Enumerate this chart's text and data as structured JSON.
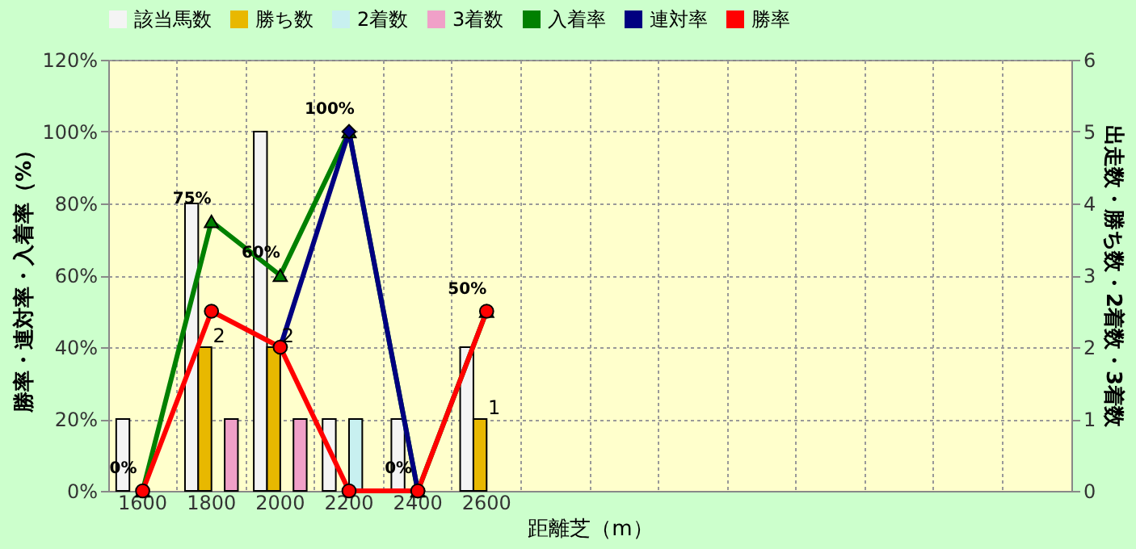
{
  "chart_data": {
    "type": "bar",
    "xlabel": "距離芝（m）",
    "ylabel": "勝率・連対率・入着率（%）",
    "y2label": "出走数・勝ち数・2着数・3着数",
    "categories": [
      "1600",
      "1800",
      "2000",
      "2200",
      "2400",
      "2600",
      null,
      null,
      null,
      null,
      null,
      null,
      null,
      null
    ],
    "series": [
      {
        "name": "該当馬数",
        "axis": "y2",
        "color": "#f4f4f4",
        "values": [
          1,
          4,
          5,
          1,
          1,
          2,
          null,
          null,
          null,
          null,
          null,
          null,
          null,
          null
        ]
      },
      {
        "name": "勝ち数",
        "axis": "y2",
        "color": "#e8b800",
        "values": [
          null,
          2,
          2,
          null,
          null,
          1,
          null,
          null,
          null,
          null,
          null,
          null,
          null,
          null
        ],
        "value_labels": [
          null,
          "2",
          "2",
          null,
          null,
          "1",
          null,
          null,
          null,
          null,
          null,
          null,
          null,
          null
        ]
      },
      {
        "name": "2着数",
        "axis": "y2",
        "color": "#c8f0f0",
        "values": [
          null,
          null,
          null,
          1,
          null,
          null,
          null,
          null,
          null,
          null,
          null,
          null,
          null,
          null
        ]
      },
      {
        "name": "3着数",
        "axis": "y2",
        "color": "#f0a0c8",
        "values": [
          null,
          1,
          1,
          null,
          null,
          null,
          null,
          null,
          null,
          null,
          null,
          null,
          null,
          null
        ]
      },
      {
        "name": "入着率",
        "type": "line",
        "marker": "triangle",
        "color": "#008000",
        "values": [
          0,
          75,
          60,
          100,
          0,
          50,
          null,
          null,
          null,
          null,
          null,
          null,
          null,
          null
        ],
        "value_labels": [
          "0%",
          "75%",
          "60%",
          "100%",
          "0%",
          "50%",
          null,
          null,
          null,
          null,
          null,
          null,
          null,
          null
        ]
      },
      {
        "name": "連対率",
        "type": "line",
        "marker": "diamond",
        "color": "#000080",
        "values": [
          null,
          null,
          40,
          100,
          0,
          null,
          null,
          null,
          null,
          null,
          null,
          null,
          null,
          null
        ]
      },
      {
        "name": "勝率",
        "type": "line",
        "marker": "circle",
        "color": "#ff0000",
        "values": [
          0,
          50,
          40,
          0,
          0,
          50,
          null,
          null,
          null,
          null,
          null,
          null,
          null,
          null
        ]
      }
    ],
    "ylim": [
      0,
      120
    ],
    "yticks": [
      {
        "value": 0,
        "label": "0%"
      },
      {
        "value": 20,
        "label": "20%"
      },
      {
        "value": 40,
        "label": "40%"
      },
      {
        "value": 60,
        "label": "60%"
      },
      {
        "value": 80,
        "label": "80%"
      },
      {
        "value": 100,
        "label": "100%"
      },
      {
        "value": 120,
        "label": "120%"
      }
    ],
    "y2lim": [
      0,
      6
    ],
    "y2ticks": [
      0,
      1,
      2,
      3,
      4,
      5,
      6
    ],
    "grid": true,
    "legend": "top",
    "line_style": "solid"
  }
}
